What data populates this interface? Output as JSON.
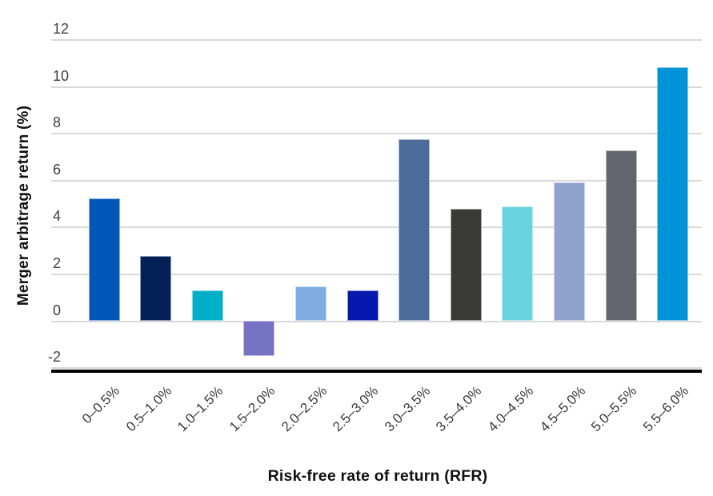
{
  "chart_data": {
    "type": "bar",
    "title": "",
    "xlabel": "Risk-free rate of return (RFR)",
    "ylabel": "Merger arbitrage return (%)",
    "categories": [
      "0–0.5%",
      "0.5–1.0%",
      "1.0–1.5%",
      "1.5–2.0%",
      "2.0–2.5%",
      "2.5–3.0%",
      "3.0–3.5%",
      "3.5–4.0%",
      "4.0–4.5%",
      "4.5–5.0%",
      "5.0–5.5%",
      "5.5–6.0%"
    ],
    "values": [
      5.2,
      2.75,
      1.3,
      -1.5,
      1.45,
      1.3,
      7.75,
      4.75,
      4.85,
      5.9,
      7.25,
      10.8
    ],
    "bar_colors": [
      "#0057B8",
      "#032157",
      "#00AEC7",
      "#7673C5",
      "#7FADE1",
      "#0718AE",
      "#4D6B99",
      "#3A3B39",
      "#68D2DE",
      "#8EA2CC",
      "#63646C",
      "#0093D8"
    ],
    "ylim": [
      -2,
      12
    ],
    "yticks": [
      12,
      10,
      8,
      6,
      4,
      2,
      0,
      -2
    ],
    "grid": "horizontal",
    "legend": "none"
  },
  "colors": {
    "background": "#FFFFFF",
    "gridline": "#D9D9D9",
    "axis_line": "#000000",
    "tick_text": "#3F3F3F",
    "title_text": "#111111"
  }
}
